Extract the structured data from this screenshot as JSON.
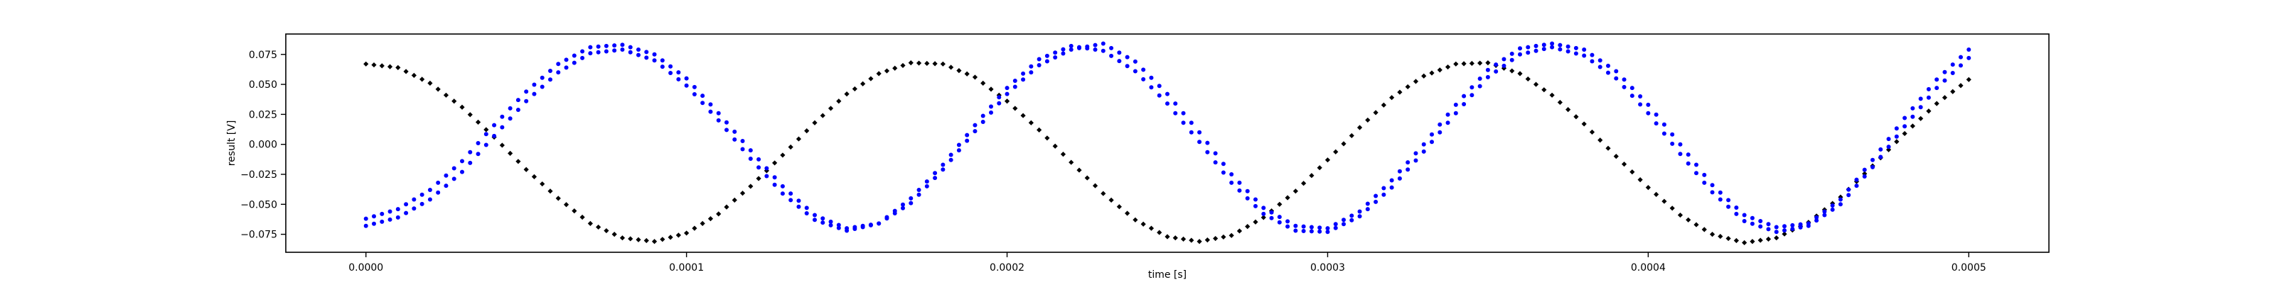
{
  "chart_data": {
    "type": "scatter",
    "title": "",
    "xlabel": "time [s]",
    "ylabel": "result [V]",
    "xlim": [
      -2.5e-05,
      0.000525
    ],
    "ylim": [
      -0.09,
      0.092
    ],
    "x_ticks": [
      0.0,
      0.0001,
      0.0002,
      0.0003,
      0.0004,
      0.0005
    ],
    "x_tick_labels": [
      "0.0000",
      "0.0001",
      "0.0002",
      "0.0003",
      "0.0004",
      "0.0005"
    ],
    "y_ticks": [
      -0.075,
      -0.05,
      -0.025,
      0.0,
      0.025,
      0.05,
      0.075
    ],
    "y_tick_labels": [
      "−0.075",
      "−0.050",
      "−0.025",
      "0.000",
      "0.025",
      "0.050",
      "0.075"
    ],
    "grid": false,
    "legend": "none",
    "series": [
      {
        "color": "#000000",
        "marker": "diamond",
        "x": [
          0.0,
          1e-05,
          2e-05,
          3e-05,
          4e-05,
          5e-05,
          6e-05,
          7e-05,
          8e-05,
          9e-05,
          0.0001,
          0.00011,
          0.00012,
          0.00013,
          0.00014,
          0.00015,
          0.00016,
          0.00017,
          0.00018,
          0.00019,
          0.0002,
          0.00021,
          0.00022,
          0.00023,
          0.00024,
          0.00025,
          0.00026,
          0.00027,
          0.00028,
          0.00029,
          0.0003,
          0.00031,
          0.00032,
          0.00033,
          0.00034,
          0.00035,
          0.00036,
          0.00037,
          0.00038,
          0.00039,
          0.0004,
          0.00041,
          0.00042,
          0.00043,
          0.00044,
          0.00045,
          0.00046,
          0.00047,
          0.00048,
          0.00049,
          0.0005
        ],
        "y": [
          0.067,
          0.064,
          0.051,
          0.031,
          0.006,
          -0.021,
          -0.045,
          -0.066,
          -0.078,
          -0.081,
          -0.074,
          -0.058,
          -0.035,
          -0.009,
          0.018,
          0.042,
          0.059,
          0.068,
          0.067,
          0.056,
          0.036,
          0.012,
          -0.015,
          -0.041,
          -0.063,
          -0.077,
          -0.081,
          -0.076,
          -0.061,
          -0.039,
          -0.013,
          0.014,
          0.039,
          0.057,
          0.067,
          0.068,
          0.059,
          0.041,
          0.017,
          -0.01,
          -0.036,
          -0.059,
          -0.075,
          -0.082,
          -0.078,
          -0.065,
          -0.044,
          -0.018,
          0.009,
          0.034,
          0.054
        ]
      },
      {
        "color": "#0000ff",
        "marker": "circle",
        "x": [
          0.0,
          1e-05,
          2e-05,
          3e-05,
          4e-05,
          5e-05,
          6e-05,
          7e-05,
          8e-05,
          9e-05,
          0.0001,
          0.00011,
          0.00012,
          0.00013,
          0.00014,
          0.00015,
          0.00016,
          0.00017,
          0.00018,
          0.00019,
          0.0002,
          0.00021,
          0.00022,
          0.00023,
          0.00024,
          0.00025,
          0.00026,
          0.00027,
          0.00028,
          0.00029,
          0.0003,
          0.00031,
          0.00032,
          0.00033,
          0.00034,
          0.00035,
          0.00036,
          0.00037,
          0.00038,
          0.00039,
          0.0004,
          0.00041,
          0.00042,
          0.00043,
          0.00044,
          0.00045,
          0.00046,
          0.00047,
          0.00048,
          0.00049,
          0.0005
        ],
        "y": [
          -0.068,
          -0.061,
          -0.046,
          -0.023,
          0.007,
          0.036,
          0.06,
          0.076,
          0.079,
          0.07,
          0.049,
          0.02,
          -0.012,
          -0.041,
          -0.063,
          -0.072,
          -0.066,
          -0.045,
          -0.017,
          0.016,
          0.047,
          0.071,
          0.082,
          0.078,
          0.061,
          0.034,
          0.002,
          -0.032,
          -0.058,
          -0.072,
          -0.073,
          -0.06,
          -0.036,
          -0.006,
          0.026,
          0.056,
          0.075,
          0.081,
          0.074,
          0.055,
          0.026,
          -0.008,
          -0.04,
          -0.064,
          -0.073,
          -0.068,
          -0.05,
          -0.019,
          0.015,
          0.047,
          0.072
        ]
      },
      {
        "color": "#0000ff",
        "marker": "circle",
        "x": [
          0.0,
          1e-05,
          2e-05,
          3e-05,
          4e-05,
          5e-05,
          6e-05,
          7e-05,
          8e-05,
          9e-05,
          0.0001,
          0.00011,
          0.00012,
          0.00013,
          0.00014,
          0.00015,
          0.00016,
          0.00017,
          0.00018,
          0.00019,
          0.0002,
          0.00021,
          0.00022,
          0.00023,
          0.00024,
          0.00025,
          0.00026,
          0.00027,
          0.00028,
          0.00029,
          0.0003,
          0.00031,
          0.00032,
          0.00033,
          0.00034,
          0.00035,
          0.00036,
          0.00037,
          0.00038,
          0.00039,
          0.0004,
          0.00041,
          0.00042,
          0.00043,
          0.00044,
          0.00045,
          0.00046,
          0.00047,
          0.00048,
          0.00049,
          0.0005
        ],
        "y": [
          -0.062,
          -0.054,
          -0.038,
          -0.014,
          0.016,
          0.044,
          0.067,
          0.081,
          0.083,
          0.075,
          0.055,
          0.026,
          -0.005,
          -0.035,
          -0.059,
          -0.07,
          -0.066,
          -0.049,
          -0.021,
          0.011,
          0.042,
          0.066,
          0.079,
          0.084,
          0.069,
          0.042,
          0.01,
          -0.025,
          -0.053,
          -0.068,
          -0.07,
          -0.056,
          -0.03,
          0.0,
          0.033,
          0.062,
          0.08,
          0.084,
          0.079,
          0.061,
          0.033,
          0.0,
          -0.034,
          -0.059,
          -0.069,
          -0.066,
          -0.046,
          -0.013,
          0.022,
          0.054,
          0.079
        ]
      }
    ]
  }
}
